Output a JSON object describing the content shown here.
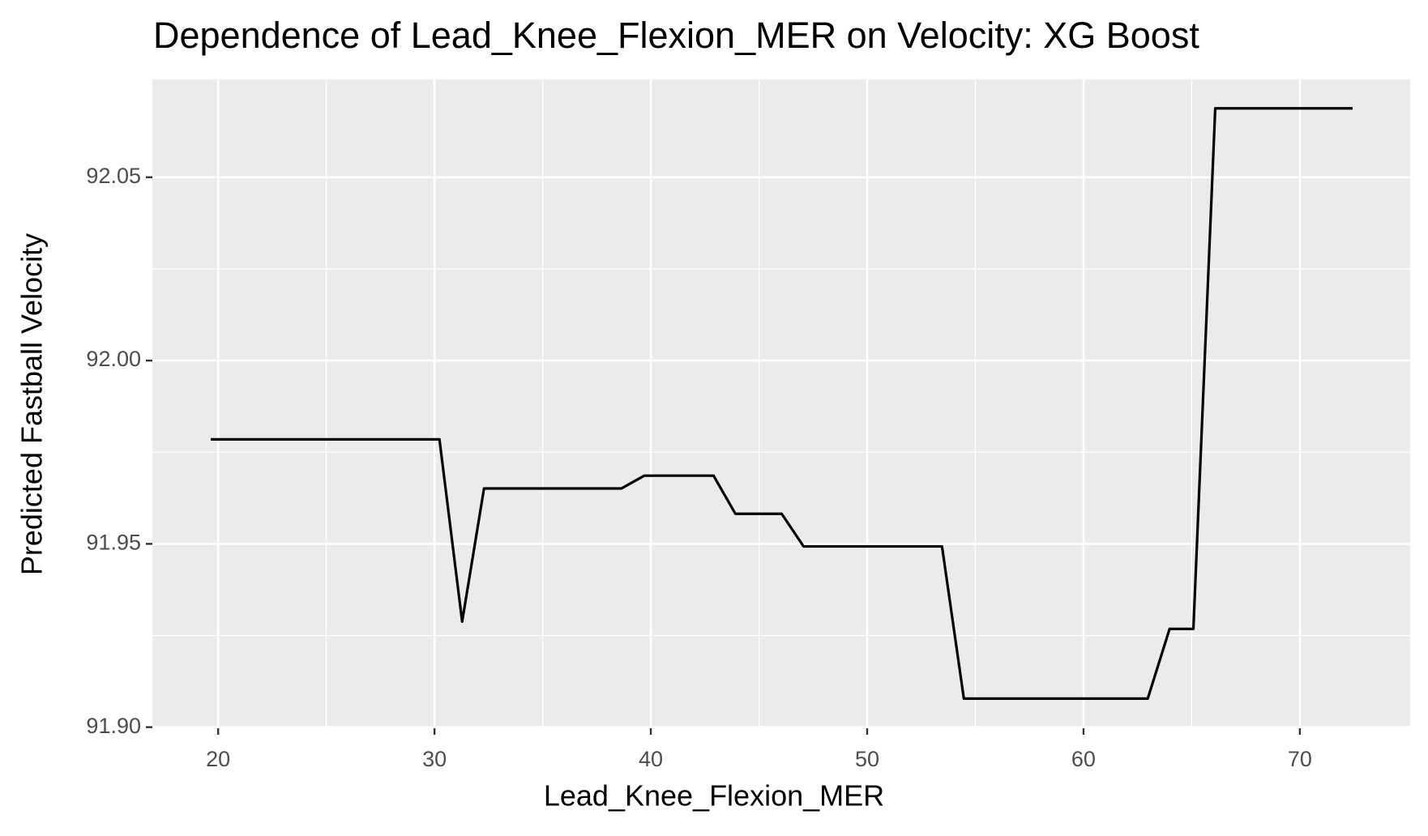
{
  "chart_data": {
    "type": "line",
    "title": "Dependence of Lead_Knee_Flexion_MER on Velocity: XG Boost",
    "x_label": "Lead_Knee_Flexion_MER",
    "y_label": "Predicted Fastball Velocity",
    "x": [
      19.66,
      30.23,
      31.28,
      32.29,
      38.64,
      39.7,
      42.9,
      43.91,
      46.05,
      47.06,
      53.46,
      54.47,
      62.97,
      63.98,
      65.08,
      66.09,
      72.44
    ],
    "series": [
      {
        "name": "Predicted Fastball Velocity",
        "color": "#000000",
        "values": [
          91.9785,
          91.9785,
          91.9288,
          91.9651,
          91.9651,
          91.9686,
          91.9686,
          91.9582,
          91.9582,
          91.9493,
          91.9493,
          91.9078,
          91.9078,
          91.9268,
          91.9268,
          92.0688,
          92.0688
        ]
      }
    ],
    "xlim": [
      16.96,
      75.1
    ],
    "ylim": [
      91.8997,
      92.0767
    ],
    "xticks": [
      20,
      30,
      40,
      50,
      60,
      70
    ],
    "yticks": [
      {
        "value": 91.9,
        "label": "91.90"
      },
      91.95,
      {
        "value": 92,
        "label": "92.00"
      },
      92.05
    ],
    "grid": true
  }
}
